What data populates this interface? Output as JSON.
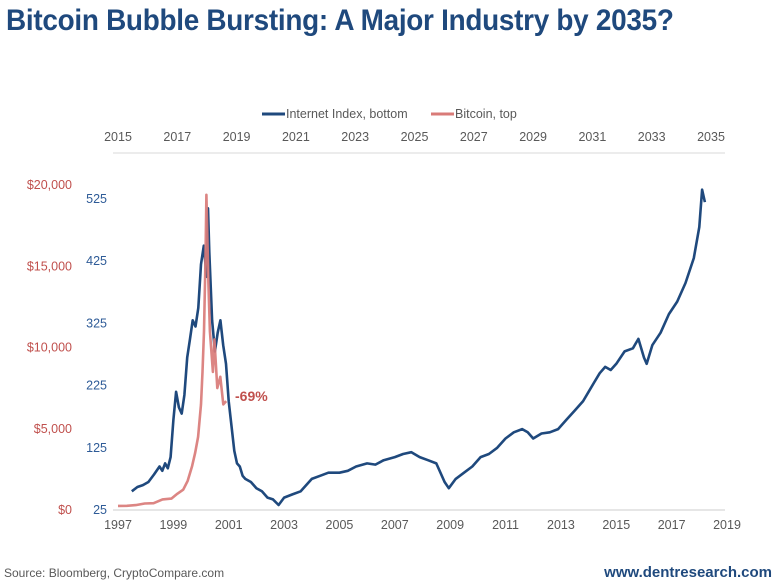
{
  "title": "Bitcoin Bubble Bursting: A Major Industry by 2035?",
  "source": "Source: Bloomberg, CryptoCompare.com",
  "website": "www.dentresearch.com",
  "chart_data": {
    "type": "line",
    "title": "Bitcoin Bubble Bursting: A Major Industry by 2035?",
    "legend": {
      "placement": "top-center",
      "entries": [
        {
          "label": "Internet Index, bottom",
          "color": "#1f497d"
        },
        {
          "label": "Bitcoin, top",
          "color": "#d97b78"
        }
      ]
    },
    "x_bottom": {
      "label": "",
      "range": [
        1997,
        2019
      ],
      "ticks": [
        "1997",
        "1999",
        "2001",
        "2003",
        "2005",
        "2007",
        "2009",
        "2011",
        "2013",
        "2015",
        "2017",
        "2019"
      ]
    },
    "x_top": {
      "label": "",
      "range": [
        2015,
        2035
      ],
      "ticks": [
        "2015",
        "2017",
        "2019",
        "2021",
        "2023",
        "2025",
        "2027",
        "2029",
        "2031",
        "2033",
        "2035"
      ]
    },
    "y_left_bitcoin": {
      "label": "",
      "range": [
        0,
        20000
      ],
      "ticks": [
        "$0",
        "$5,000",
        "$10,000",
        "$15,000",
        "$20,000"
      ],
      "color": "#c0504d"
    },
    "y_left_index": {
      "label": "",
      "range": [
        25,
        525
      ],
      "ticks": [
        "25",
        "125",
        "225",
        "325",
        "425",
        "525"
      ],
      "color": "#2e5b97"
    },
    "annotations": [
      {
        "text": "-69%",
        "series": "Bitcoin, top",
        "near_x_top": 2018.7,
        "near_y": 7000
      }
    ],
    "series": [
      {
        "name": "Internet Index, bottom",
        "axis": "bottom",
        "color": "#1f497d",
        "x": [
          1997.5,
          1997.7,
          1997.9,
          1998.1,
          1998.3,
          1998.5,
          1998.6,
          1998.7,
          1998.8,
          1998.9,
          1999.0,
          1999.1,
          1999.2,
          1999.3,
          1999.4,
          1999.5,
          1999.6,
          1999.7,
          1999.8,
          1999.9,
          2000.0,
          2000.1,
          2000.2,
          2000.25,
          2000.3,
          2000.4,
          2000.5,
          2000.6,
          2000.7,
          2000.8,
          2000.9,
          2001.0,
          2001.1,
          2001.2,
          2001.3,
          2001.4,
          2001.5,
          2001.6,
          2001.8,
          2002.0,
          2002.2,
          2002.4,
          2002.6,
          2002.8,
          2003.0,
          2003.3,
          2003.6,
          2004.0,
          2004.3,
          2004.6,
          2005.0,
          2005.3,
          2005.6,
          2006.0,
          2006.3,
          2006.6,
          2007.0,
          2007.3,
          2007.6,
          2007.9,
          2008.2,
          2008.5,
          2008.8,
          2008.95,
          2009.2,
          2009.5,
          2009.8,
          2010.1,
          2010.4,
          2010.7,
          2011.0,
          2011.3,
          2011.6,
          2011.8,
          2012.0,
          2012.3,
          2012.6,
          2012.9,
          2013.2,
          2013.5,
          2013.8,
          2014.0,
          2014.2,
          2014.4,
          2014.6,
          2014.8,
          2015.0,
          2015.3,
          2015.6,
          2015.8,
          2016.0,
          2016.1,
          2016.3,
          2016.6,
          2016.9,
          2017.2,
          2017.5,
          2017.8,
          2018.0,
          2018.1,
          2018.2
        ],
        "y": [
          55,
          62,
          65,
          70,
          82,
          95,
          88,
          100,
          92,
          110,
          170,
          215,
          190,
          180,
          210,
          270,
          300,
          330,
          320,
          350,
          420,
          450,
          400,
          510,
          440,
          330,
          280,
          310,
          330,
          290,
          260,
          200,
          160,
          120,
          100,
          95,
          80,
          75,
          70,
          60,
          55,
          45,
          42,
          33,
          45,
          50,
          55,
          75,
          80,
          85,
          85,
          88,
          95,
          100,
          98,
          105,
          110,
          115,
          118,
          110,
          105,
          100,
          70,
          60,
          75,
          85,
          95,
          110,
          115,
          125,
          140,
          150,
          155,
          150,
          140,
          148,
          150,
          155,
          170,
          185,
          200,
          215,
          230,
          245,
          255,
          250,
          260,
          280,
          285,
          300,
          270,
          260,
          290,
          310,
          340,
          360,
          390,
          430,
          480,
          540,
          520
        ]
      },
      {
        "name": "Bitcoin, top",
        "axis": "top",
        "color": "#d97b78",
        "x": [
          2015.0,
          2015.3,
          2015.6,
          2015.9,
          2016.2,
          2016.5,
          2016.8,
          2017.0,
          2017.2,
          2017.35,
          2017.5,
          2017.6,
          2017.7,
          2017.8,
          2017.85,
          2017.9,
          2017.95,
          2017.98,
          2018.05,
          2018.1,
          2018.2,
          2018.25,
          2018.35,
          2018.45,
          2018.55,
          2018.65
        ],
        "y": [
          250,
          260,
          300,
          400,
          420,
          650,
          700,
          1000,
          1250,
          1800,
          2700,
          3500,
          4500,
          6500,
          8500,
          11000,
          15500,
          19400,
          14000,
          11000,
          8500,
          10500,
          7500,
          8200,
          6500,
          6700
        ]
      }
    ]
  }
}
